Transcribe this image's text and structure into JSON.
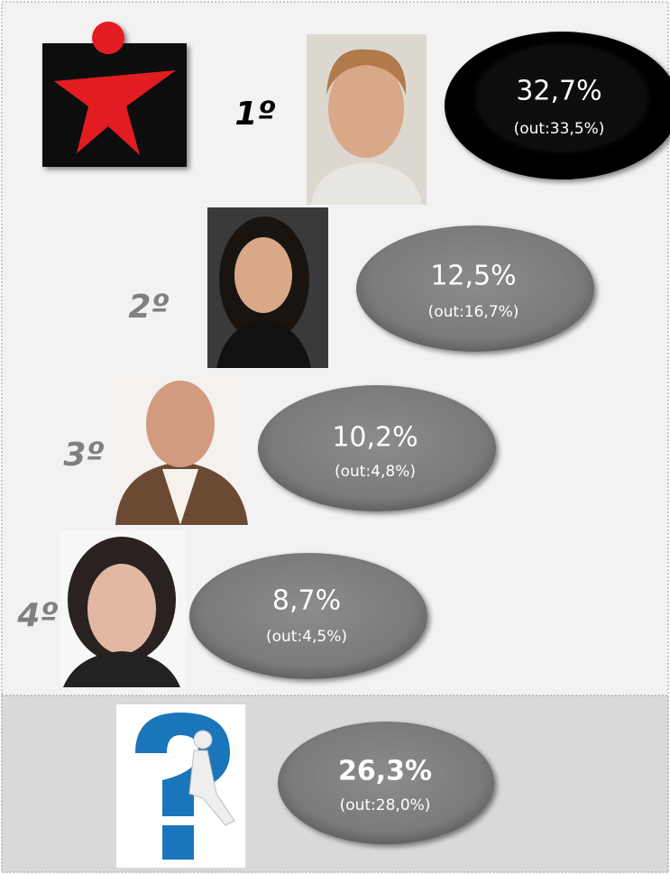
{
  "entries": [
    {
      "rank": "1º",
      "share": "32,7%",
      "out": "(out:33,5%)"
    },
    {
      "rank": "2º",
      "share": "12,5%",
      "out": "(out:16,7%)"
    },
    {
      "rank": "3º",
      "share": "10,2%",
      "out": "(out:4,8%)"
    },
    {
      "rank": "4º",
      "share": "8,7%",
      "out": "(out:4,5%)"
    }
  ],
  "undecided": {
    "share": "26,3%",
    "out": "(out:28,0%)"
  }
}
